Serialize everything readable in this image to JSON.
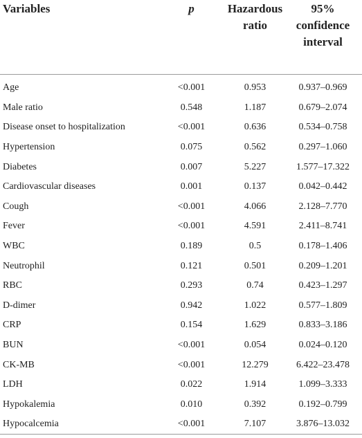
{
  "table": {
    "headers": {
      "variables": "Variables",
      "p": "p",
      "hazard": [
        "Hazardous",
        "ratio"
      ],
      "ci": [
        "95%",
        "confidence",
        "interval"
      ]
    },
    "rows": [
      {
        "variable": "Age",
        "p": "<0.001",
        "hr": "0.953",
        "ci": "0.937–0.969"
      },
      {
        "variable": "Male ratio",
        "p": "0.548",
        "hr": "1.187",
        "ci": "0.679–2.074"
      },
      {
        "variable": "Disease onset to hospitalization",
        "p": "<0.001",
        "hr": "0.636",
        "ci": "0.534–0.758"
      },
      {
        "variable": "Hypertension",
        "p": "0.075",
        "hr": "0.562",
        "ci": "0.297–1.060"
      },
      {
        "variable": "Diabetes",
        "p": "0.007",
        "hr": "5.227",
        "ci": "1.577–17.322"
      },
      {
        "variable": "Cardiovascular diseases",
        "p": "0.001",
        "hr": "0.137",
        "ci": "0.042–0.442"
      },
      {
        "variable": "Cough",
        "p": "<0.001",
        "hr": "4.066",
        "ci": "2.128–7.770"
      },
      {
        "variable": "Fever",
        "p": "<0.001",
        "hr": "4.591",
        "ci": "2.411–8.741"
      },
      {
        "variable": "WBC",
        "p": "0.189",
        "hr": "0.5",
        "ci": "0.178–1.406"
      },
      {
        "variable": "Neutrophil",
        "p": "0.121",
        "hr": "0.501",
        "ci": "0.209–1.201"
      },
      {
        "variable": "RBC",
        "p": "0.293",
        "hr": "0.74",
        "ci": "0.423–1.297"
      },
      {
        "variable": "D-dimer",
        "p": "0.942",
        "hr": "1.022",
        "ci": "0.577–1.809"
      },
      {
        "variable": "CRP",
        "p": "0.154",
        "hr": "1.629",
        "ci": "0.833–3.186"
      },
      {
        "variable": "BUN",
        "p": "<0.001",
        "hr": "0.054",
        "ci": "0.024–0.120"
      },
      {
        "variable": "CK-MB",
        "p": "<0.001",
        "hr": "12.279",
        "ci": "6.422–23.478"
      },
      {
        "variable": "LDH",
        "p": "0.022",
        "hr": "1.914",
        "ci": "1.099–3.333"
      },
      {
        "variable": "Hypokalemia",
        "p": "0.010",
        "hr": "0.392",
        "ci": "0.192–0.799"
      },
      {
        "variable": "Hypocalcemia",
        "p": "<0.001",
        "hr": "7.107",
        "ci": "3.876–13.032"
      }
    ]
  }
}
